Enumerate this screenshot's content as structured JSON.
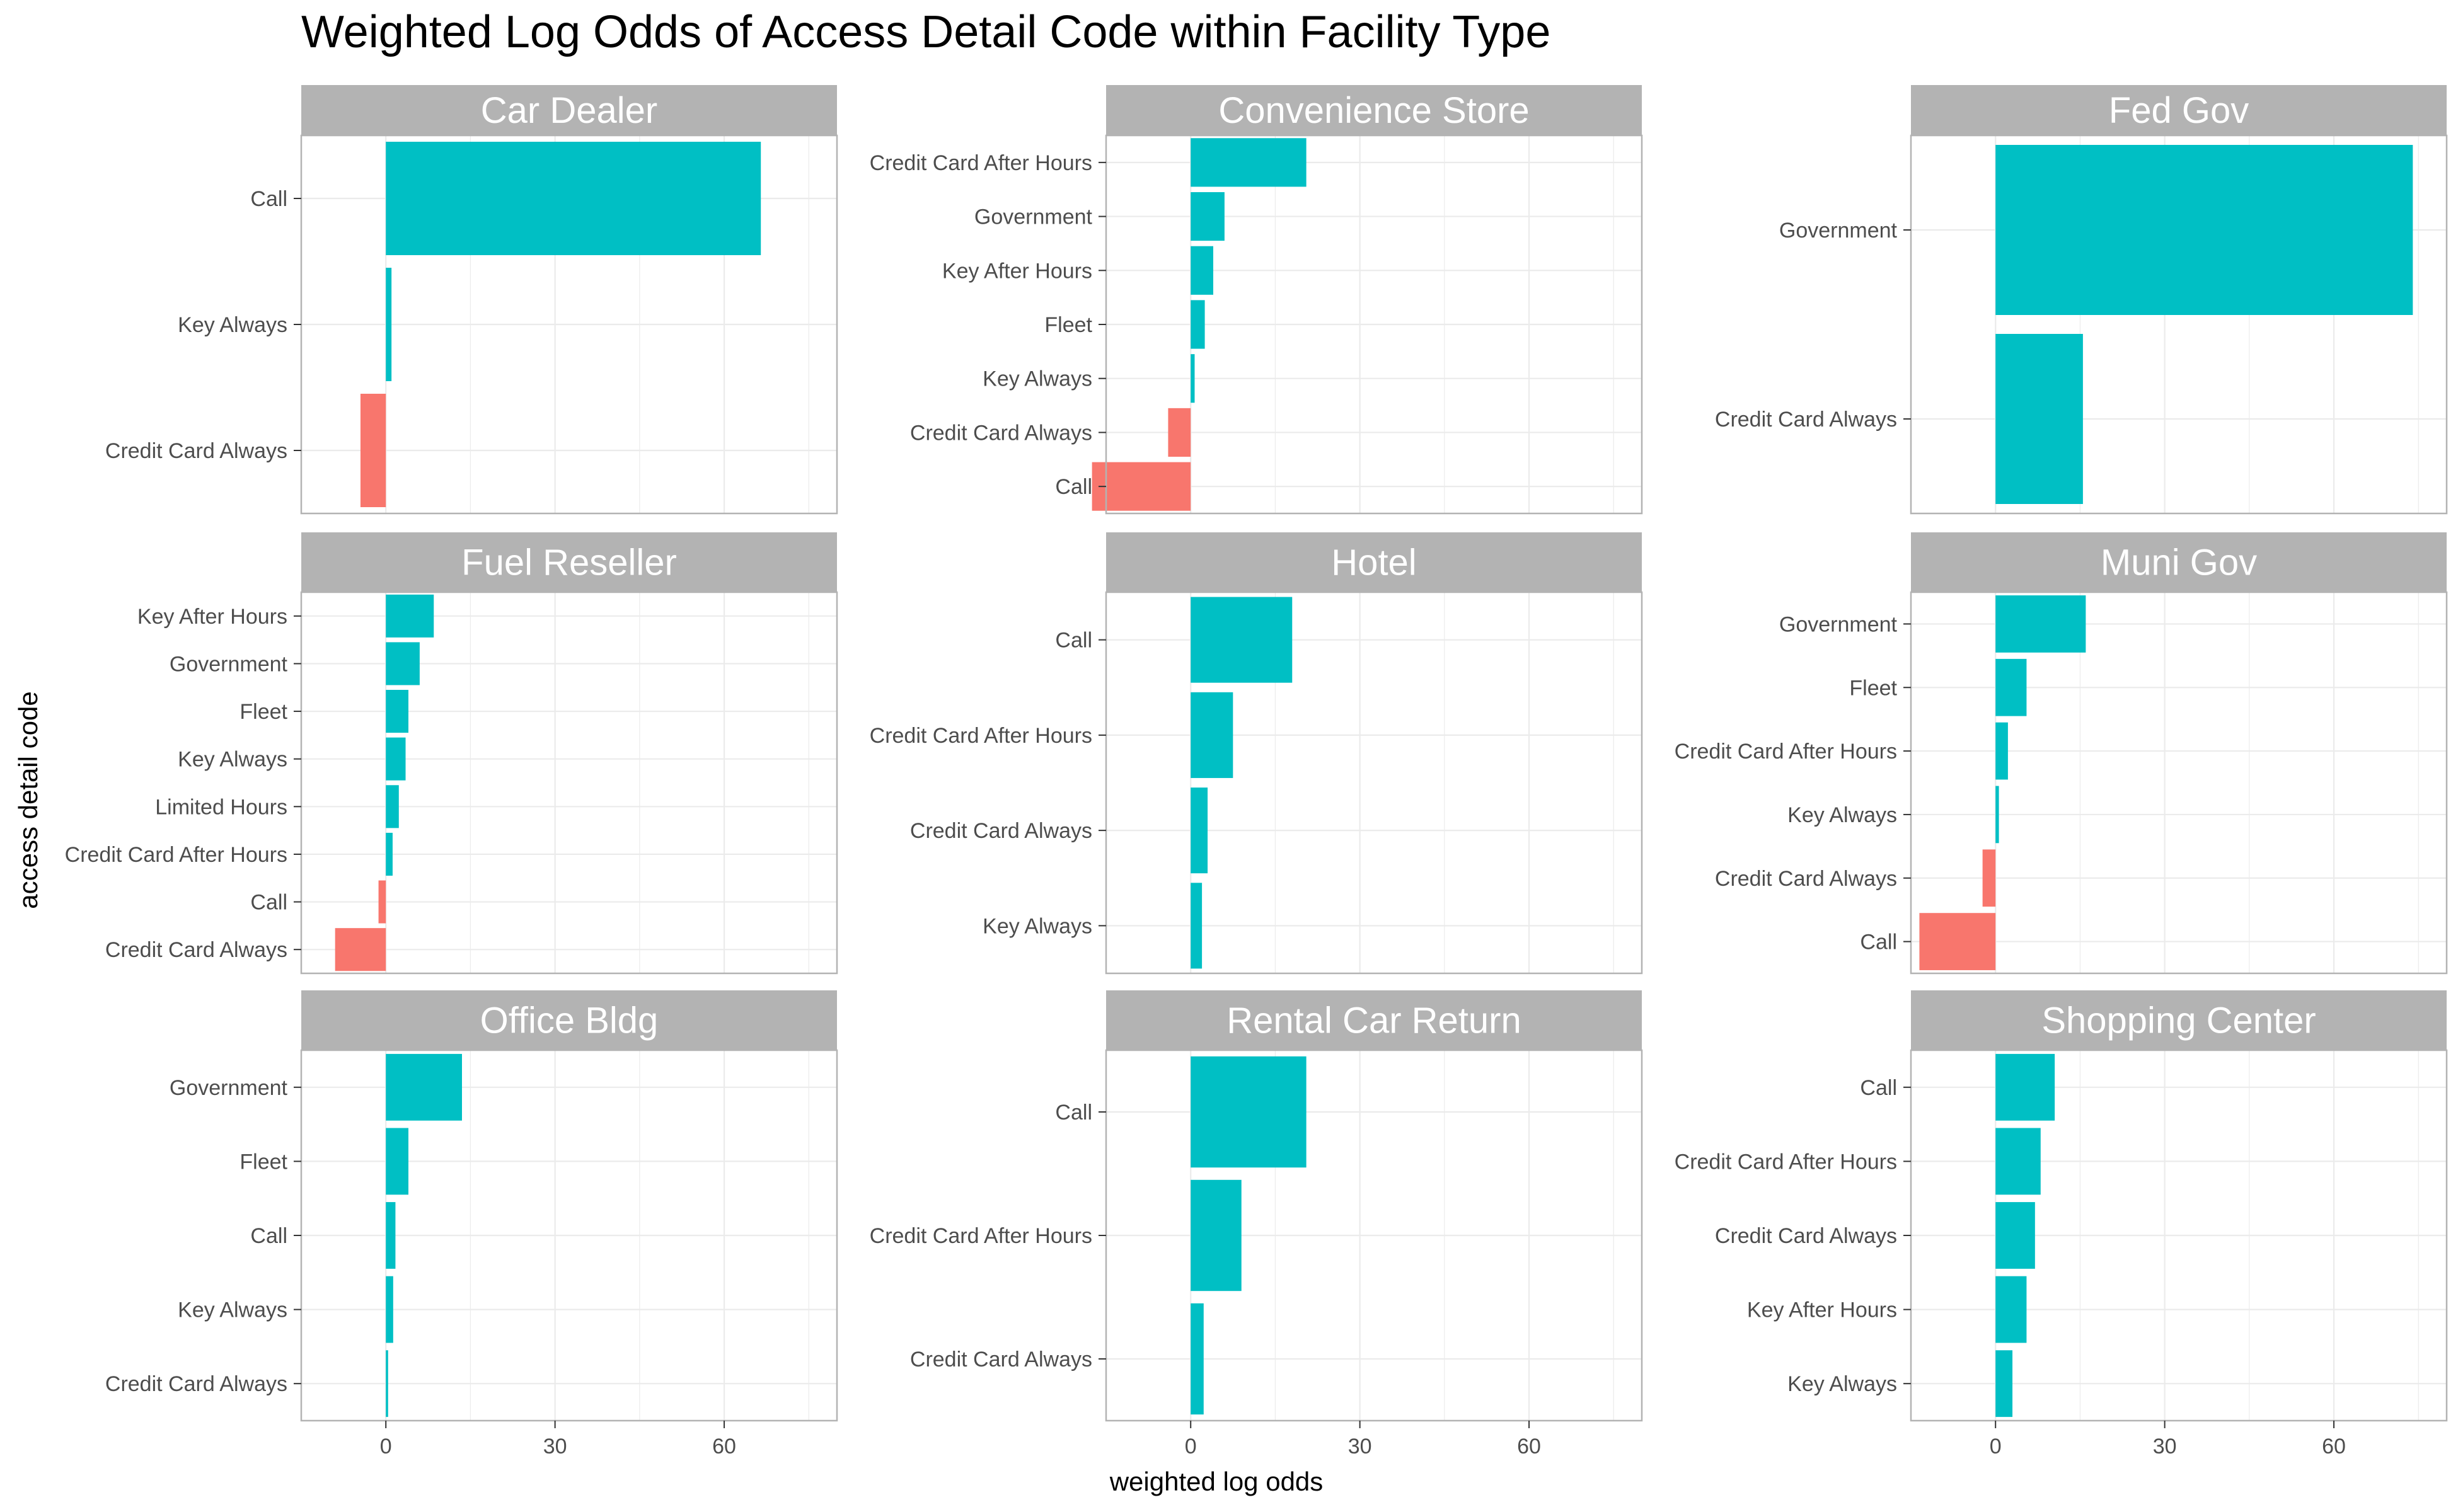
{
  "chart_data": {
    "type": "bar",
    "orientation": "horizontal",
    "title": "Weighted Log Odds of Access Detail Code within Facility Type",
    "xlabel": "weighted log odds",
    "ylabel": "access detail code",
    "xlim": [
      -15,
      80
    ],
    "xticks": [
      0,
      30,
      60
    ],
    "grid": true,
    "legend": "none",
    "colors": {
      "positive": "#00BFC4",
      "negative": "#F8766D",
      "strip": "#B3B3B3",
      "strip_text": "#FFFFFF",
      "grid": "#EBEBEB",
      "panel_border": "#B3B3B3"
    },
    "panels": [
      {
        "name": "Car Dealer",
        "categories": [
          "Call",
          "Key Always",
          "Credit Card Always"
        ],
        "values": [
          66.5,
          1,
          -4.5
        ]
      },
      {
        "name": "Convenience Store",
        "categories": [
          "Credit Card After Hours",
          "Government",
          "Key After Hours",
          "Fleet",
          "Key Always",
          "Credit Card Always",
          "Call"
        ],
        "values": [
          20.5,
          6,
          4,
          2.5,
          0.7,
          -4,
          -17.5
        ]
      },
      {
        "name": "Fed Gov",
        "categories": [
          "Government",
          "Credit Card Always"
        ],
        "values": [
          74,
          15.5
        ]
      },
      {
        "name": "Fuel Reseller",
        "categories": [
          "Key After Hours",
          "Government",
          "Fleet",
          "Key Always",
          "Limited Hours",
          "Credit Card After Hours",
          "Call",
          "Credit Card Always"
        ],
        "values": [
          8.5,
          6,
          4,
          3.5,
          2.3,
          1.2,
          -1.3,
          -9
        ]
      },
      {
        "name": "Hotel",
        "categories": [
          "Call",
          "Credit Card After Hours",
          "Credit Card Always",
          "Key Always"
        ],
        "values": [
          18,
          7.5,
          3,
          2
        ]
      },
      {
        "name": "Muni Gov",
        "categories": [
          "Government",
          "Fleet",
          "Credit Card After Hours",
          "Key Always",
          "Credit Card Always",
          "Call"
        ],
        "values": [
          16,
          5.5,
          2.2,
          0.6,
          -2.3,
          -13.5
        ]
      },
      {
        "name": "Office Bldg",
        "categories": [
          "Government",
          "Fleet",
          "Call",
          "Key Always",
          "Credit Card Always"
        ],
        "values": [
          13.5,
          4,
          1.7,
          1.3,
          0.4
        ]
      },
      {
        "name": "Rental Car Return",
        "categories": [
          "Call",
          "Credit Card After Hours",
          "Credit Card Always"
        ],
        "values": [
          20.5,
          9,
          2.3
        ]
      },
      {
        "name": "Shopping Center",
        "categories": [
          "Call",
          "Credit Card After Hours",
          "Credit Card Always",
          "Key After Hours",
          "Key Always"
        ],
        "values": [
          10.5,
          8,
          7,
          5.5,
          3
        ]
      }
    ]
  }
}
